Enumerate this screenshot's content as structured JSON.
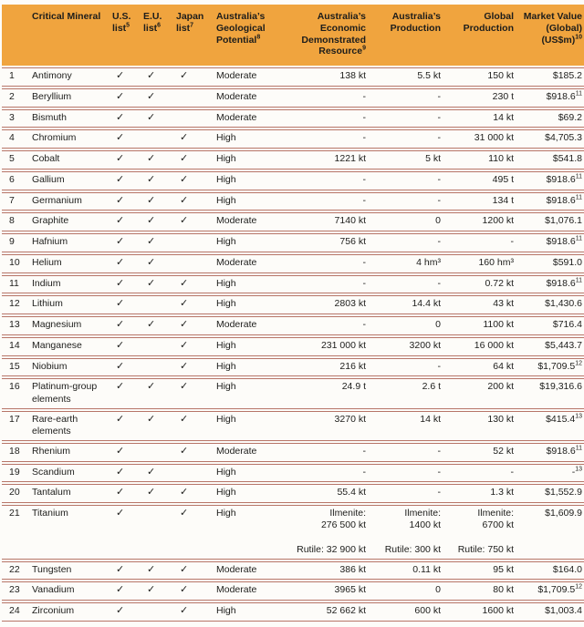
{
  "table": {
    "checkmark": "✓",
    "columns": [
      {
        "label": "",
        "sup": ""
      },
      {
        "label": "Critical Mineral",
        "sup": ""
      },
      {
        "label": "U.S. list",
        "sup": "5"
      },
      {
        "label": "E.U. list",
        "sup": "6"
      },
      {
        "label": "Japan list",
        "sup": "7"
      },
      {
        "label": "Australia’s Geological Potential",
        "sup": "8"
      },
      {
        "label": "Australia’s Economic Demonstrated Resource",
        "sup": "9"
      },
      {
        "label": "Australia’s Production",
        "sup": ""
      },
      {
        "label": "Global Production",
        "sup": ""
      },
      {
        "label": "Market Value (Global) (US$m)",
        "sup": "10"
      }
    ],
    "rows": [
      {
        "num": "1",
        "mineral": "Antimony",
        "us": true,
        "eu": true,
        "japan": true,
        "potential": "Moderate",
        "edr": "138 kt",
        "production": "5.5 kt",
        "global": "150 kt",
        "market": "$185.2",
        "market_sup": ""
      },
      {
        "num": "2",
        "mineral": "Beryllium",
        "us": true,
        "eu": true,
        "japan": false,
        "potential": "Moderate",
        "edr": "-",
        "production": "-",
        "global": "230 t",
        "market": "$918.6",
        "market_sup": "11"
      },
      {
        "num": "3",
        "mineral": "Bismuth",
        "us": true,
        "eu": true,
        "japan": false,
        "potential": "Moderate",
        "edr": "-",
        "production": "-",
        "global": "14 kt",
        "market": "$69.2",
        "market_sup": ""
      },
      {
        "num": "4",
        "mineral": "Chromium",
        "us": true,
        "eu": false,
        "japan": true,
        "potential": "High",
        "edr": "-",
        "production": "-",
        "global": "31 000 kt",
        "market": "$4,705.3",
        "market_sup": ""
      },
      {
        "num": "5",
        "mineral": "Cobalt",
        "us": true,
        "eu": true,
        "japan": true,
        "potential": "High",
        "edr": "1221 kt",
        "production": "5 kt",
        "global": "110 kt",
        "market": "$541.8",
        "market_sup": ""
      },
      {
        "num": "6",
        "mineral": "Gallium",
        "us": true,
        "eu": true,
        "japan": true,
        "potential": "High",
        "edr": "-",
        "production": "-",
        "global": "495 t",
        "market": "$918.6",
        "market_sup": "11"
      },
      {
        "num": "7",
        "mineral": "Germanium",
        "us": true,
        "eu": true,
        "japan": true,
        "potential": "High",
        "edr": "-",
        "production": "-",
        "global": "134 t",
        "market": "$918.6",
        "market_sup": "11"
      },
      {
        "num": "8",
        "mineral": "Graphite",
        "us": true,
        "eu": true,
        "japan": true,
        "potential": "Moderate",
        "edr": "7140 kt",
        "production": "0",
        "global": "1200 kt",
        "market": "$1,076.1",
        "market_sup": ""
      },
      {
        "num": "9",
        "mineral": "Hafnium",
        "us": true,
        "eu": true,
        "japan": false,
        "potential": "High",
        "edr": "756 kt",
        "production": "-",
        "global": "-",
        "market": "$918.6",
        "market_sup": "11"
      },
      {
        "num": "10",
        "mineral": "Helium",
        "us": true,
        "eu": true,
        "japan": false,
        "potential": "Moderate",
        "edr": "-",
        "production": "4 hm³",
        "global": "160 hm³",
        "market": "$591.0",
        "market_sup": ""
      },
      {
        "num": "11",
        "mineral": "Indium",
        "us": true,
        "eu": true,
        "japan": true,
        "potential": "High",
        "edr": "-",
        "production": "-",
        "global": "0.72 kt",
        "market": "$918.6",
        "market_sup": "11"
      },
      {
        "num": "12",
        "mineral": "Lithium",
        "us": true,
        "eu": false,
        "japan": true,
        "potential": "High",
        "edr": "2803 kt",
        "production": "14.4 kt",
        "global": "43 kt",
        "market": "$1,430.6",
        "market_sup": ""
      },
      {
        "num": "13",
        "mineral": "Magnesium",
        "us": true,
        "eu": true,
        "japan": true,
        "potential": "Moderate",
        "edr": "-",
        "production": "0",
        "global": "1100 kt",
        "market": "$716.4",
        "market_sup": ""
      },
      {
        "num": "14",
        "mineral": "Manganese",
        "us": true,
        "eu": false,
        "japan": true,
        "potential": "High",
        "edr": "231 000 kt",
        "production": "3200 kt",
        "global": "16 000 kt",
        "market": "$5,443.7",
        "market_sup": ""
      },
      {
        "num": "15",
        "mineral": "Niobium",
        "us": true,
        "eu": false,
        "japan": true,
        "potential": "High",
        "edr": "216 kt",
        "production": "-",
        "global": "64 kt",
        "market": "$1,709.5",
        "market_sup": "12"
      },
      {
        "num": "16",
        "mineral": "Platinum-group elements",
        "us": true,
        "eu": true,
        "japan": true,
        "potential": "High",
        "edr": "24.9 t",
        "production": "2.6 t",
        "global": "200 kt",
        "market": "$19,316.6",
        "market_sup": ""
      },
      {
        "num": "17",
        "mineral": "Rare-earth elements",
        "us": true,
        "eu": true,
        "japan": true,
        "potential": "High",
        "edr": "3270 kt",
        "production": "14 kt",
        "global": "130 kt",
        "market": "$415.4",
        "market_sup": "13"
      },
      {
        "num": "18",
        "mineral": "Rhenium",
        "us": true,
        "eu": false,
        "japan": true,
        "potential": "Moderate",
        "edr": "-",
        "production": "-",
        "global": "52 kt",
        "market": "$918.6",
        "market_sup": "11"
      },
      {
        "num": "19",
        "mineral": "Scandium",
        "us": true,
        "eu": true,
        "japan": false,
        "potential": "High",
        "edr": "-",
        "production": "-",
        "global": "-",
        "market": "-",
        "market_sup": "13"
      },
      {
        "num": "20",
        "mineral": "Tantalum",
        "us": true,
        "eu": true,
        "japan": true,
        "potential": "High",
        "edr": "55.4 kt",
        "production": "-",
        "global": "1.3 kt",
        "market": "$1,552.9",
        "market_sup": ""
      },
      {
        "num": "21",
        "mineral": "Titanium",
        "us": true,
        "eu": false,
        "japan": true,
        "potential": "High",
        "edr": "Ilmenite:\n276 500 kt\n\nRutile: 32 900 kt",
        "production": "Ilmenite:\n1400 kt\n\nRutile: 300 kt",
        "global": "Ilmenite:\n6700 kt\n\nRutile: 750 kt",
        "market": "$1,609.9",
        "market_sup": ""
      },
      {
        "num": "22",
        "mineral": "Tungsten",
        "us": true,
        "eu": true,
        "japan": true,
        "potential": "Moderate",
        "edr": "386 kt",
        "production": "0.11 kt",
        "global": "95 kt",
        "market": "$164.0",
        "market_sup": ""
      },
      {
        "num": "23",
        "mineral": "Vanadium",
        "us": true,
        "eu": true,
        "japan": true,
        "potential": "Moderate",
        "edr": "3965 kt",
        "production": "0",
        "global": "80 kt",
        "market": "$1,709.5",
        "market_sup": "12"
      },
      {
        "num": "24",
        "mineral": "Zirconium",
        "us": true,
        "eu": false,
        "japan": true,
        "potential": "High",
        "edr": "52 662 kt",
        "production": "600 kt",
        "global": "1600 kt",
        "market": "$1,003.4",
        "market_sup": ""
      }
    ]
  },
  "colors": {
    "header_background": "#f0a43e",
    "row_divider": "#b77568",
    "text": "#1d1d1b",
    "page_background": "#fdfcf9"
  }
}
